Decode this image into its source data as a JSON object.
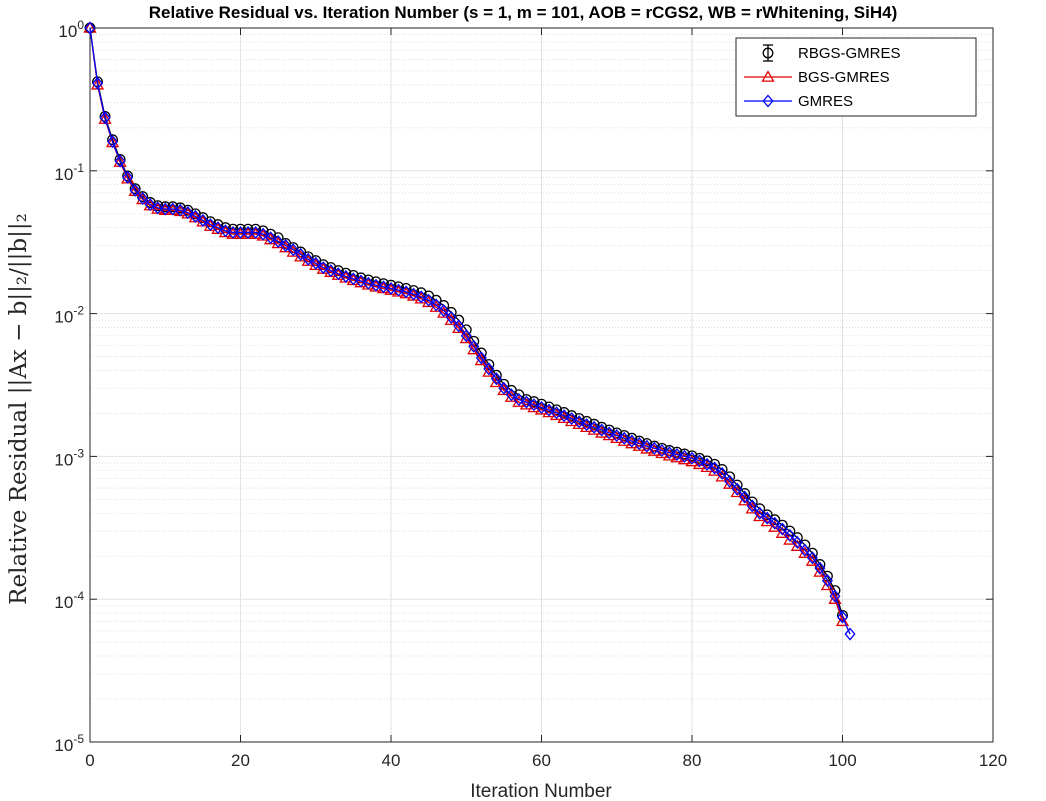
{
  "chart_data": {
    "type": "line",
    "title": "Relative Residual vs. Iteration Number (s = 1, m = 101, AOB = rCGS2, WB = rWhitening, SiH4)",
    "xlabel": "Iteration Number",
    "ylabel": "Relative Residual ||Ax − b||₂/||b||₂",
    "xlim": [
      0,
      120
    ],
    "ylim": [
      1e-05,
      1
    ],
    "yscale": "log",
    "grid": true,
    "minor_grid": true,
    "legend_position": "top-right",
    "x_ticks": [
      "0",
      "20",
      "40",
      "60",
      "80",
      "100",
      "120"
    ],
    "y_ticks": [
      {
        "base": "10",
        "exp": "0"
      },
      {
        "base": "10",
        "exp": "-1"
      },
      {
        "base": "10",
        "exp": "-2"
      },
      {
        "base": "10",
        "exp": "-3"
      },
      {
        "base": "10",
        "exp": "-4"
      },
      {
        "base": "10",
        "exp": "-5"
      }
    ],
    "x": [
      0,
      1,
      2,
      3,
      4,
      5,
      6,
      7,
      8,
      9,
      10,
      11,
      12,
      13,
      14,
      15,
      16,
      17,
      18,
      19,
      20,
      21,
      22,
      23,
      24,
      25,
      26,
      27,
      28,
      29,
      30,
      31,
      32,
      33,
      34,
      35,
      36,
      37,
      38,
      39,
      40,
      41,
      42,
      43,
      44,
      45,
      46,
      47,
      48,
      49,
      50,
      51,
      52,
      53,
      54,
      55,
      56,
      57,
      58,
      59,
      60,
      61,
      62,
      63,
      64,
      65,
      66,
      67,
      68,
      69,
      70,
      71,
      72,
      73,
      74,
      75,
      76,
      77,
      78,
      79,
      80,
      81,
      82,
      83,
      84,
      85,
      86,
      87,
      88,
      89,
      90,
      91,
      92,
      93,
      94,
      95,
      96,
      97,
      98,
      99,
      100,
      101
    ],
    "series": [
      {
        "name": "RBGS-GMRES",
        "color": "#000000",
        "marker": "circle",
        "values": [
          1,
          0.42,
          0.24,
          0.165,
          0.12,
          0.092,
          0.075,
          0.066,
          0.06,
          0.057,
          0.056,
          0.056,
          0.055,
          0.053,
          0.05,
          0.047,
          0.044,
          0.042,
          0.04,
          0.039,
          0.039,
          0.039,
          0.039,
          0.038,
          0.036,
          0.034,
          0.031,
          0.029,
          0.027,
          0.025,
          0.0235,
          0.022,
          0.021,
          0.02,
          0.0192,
          0.0185,
          0.0178,
          0.0172,
          0.0167,
          0.0162,
          0.0158,
          0.0154,
          0.015,
          0.0145,
          0.014,
          0.0133,
          0.0124,
          0.0114,
          0.0102,
          0.009,
          0.0077,
          0.0064,
          0.0053,
          0.0044,
          0.0037,
          0.0032,
          0.0029,
          0.0027,
          0.0025,
          0.00242,
          0.00232,
          0.00222,
          0.00212,
          0.00203,
          0.00193,
          0.00184,
          0.00176,
          0.00168,
          0.0016,
          0.00153,
          0.00146,
          0.0014,
          0.00134,
          0.00128,
          0.00123,
          0.00118,
          0.00114,
          0.0011,
          0.00107,
          0.00104,
          0.00101,
          0.00097,
          0.00093,
          0.00088,
          0.00081,
          0.00072,
          0.00063,
          0.00055,
          0.00048,
          0.00043,
          0.00039,
          0.00036,
          0.00033,
          0.0003,
          0.00027,
          0.00024,
          0.00021,
          0.000175,
          0.000145,
          0.000115,
          7.7e-05,
          null
        ]
      },
      {
        "name": "BGS-GMRES",
        "color": "#e00000",
        "marker": "triangle",
        "values": [
          1,
          0.4,
          0.23,
          0.158,
          0.115,
          0.088,
          0.072,
          0.063,
          0.057,
          0.054,
          0.053,
          0.053,
          0.052,
          0.05,
          0.047,
          0.044,
          0.041,
          0.039,
          0.037,
          0.036,
          0.036,
          0.036,
          0.036,
          0.035,
          0.033,
          0.031,
          0.029,
          0.027,
          0.025,
          0.0233,
          0.0218,
          0.0205,
          0.0195,
          0.0186,
          0.0178,
          0.0171,
          0.0165,
          0.0159,
          0.0154,
          0.015,
          0.0146,
          0.0142,
          0.0138,
          0.0133,
          0.0127,
          0.012,
          0.0111,
          0.0101,
          0.009,
          0.0079,
          0.0067,
          0.0056,
          0.0047,
          0.0039,
          0.0033,
          0.0029,
          0.0026,
          0.0024,
          0.0023,
          0.0022,
          0.00212,
          0.00203,
          0.00194,
          0.00185,
          0.00176,
          0.00168,
          0.0016,
          0.00153,
          0.00146,
          0.0014,
          0.00134,
          0.00128,
          0.00123,
          0.00118,
          0.00113,
          0.00109,
          0.00105,
          0.00101,
          0.00098,
          0.00095,
          0.00092,
          0.00088,
          0.00084,
          0.00079,
          0.00072,
          0.00064,
          0.00056,
          0.00049,
          0.00043,
          0.00038,
          0.00035,
          0.00032,
          0.00029,
          0.00026,
          0.000235,
          0.00021,
          0.000185,
          0.000155,
          0.000125,
          0.0001,
          7e-05,
          null
        ]
      },
      {
        "name": "GMRES",
        "color": "#0000ff",
        "marker": "diamond",
        "values": [
          1,
          0.41,
          0.235,
          0.16,
          0.117,
          0.09,
          0.073,
          0.064,
          0.058,
          0.055,
          0.054,
          0.054,
          0.053,
          0.051,
          0.048,
          0.045,
          0.042,
          0.04,
          0.038,
          0.037,
          0.037,
          0.037,
          0.037,
          0.036,
          0.034,
          0.032,
          0.03,
          0.028,
          0.026,
          0.024,
          0.0225,
          0.021,
          0.02,
          0.019,
          0.0182,
          0.0175,
          0.0169,
          0.0163,
          0.0158,
          0.0154,
          0.015,
          0.0146,
          0.0142,
          0.0137,
          0.0131,
          0.0124,
          0.0115,
          0.0105,
          0.0094,
          0.0082,
          0.007,
          0.0059,
          0.0049,
          0.0041,
          0.0035,
          0.003,
          0.0027,
          0.0025,
          0.0024,
          0.0023,
          0.0022,
          0.00211,
          0.00202,
          0.00193,
          0.00184,
          0.00175,
          0.00167,
          0.0016,
          0.00153,
          0.00146,
          0.0014,
          0.00134,
          0.00128,
          0.00123,
          0.00118,
          0.00114,
          0.0011,
          0.00106,
          0.00103,
          0.001,
          0.00097,
          0.00093,
          0.00088,
          0.00083,
          0.00076,
          0.00067,
          0.00059,
          0.00052,
          0.00045,
          0.0004,
          0.00037,
          0.00034,
          0.00031,
          0.00028,
          0.00025,
          0.00022,
          0.000195,
          0.000165,
          0.000135,
          0.000105,
          7.5e-05,
          5.7e-05
        ]
      }
    ]
  }
}
